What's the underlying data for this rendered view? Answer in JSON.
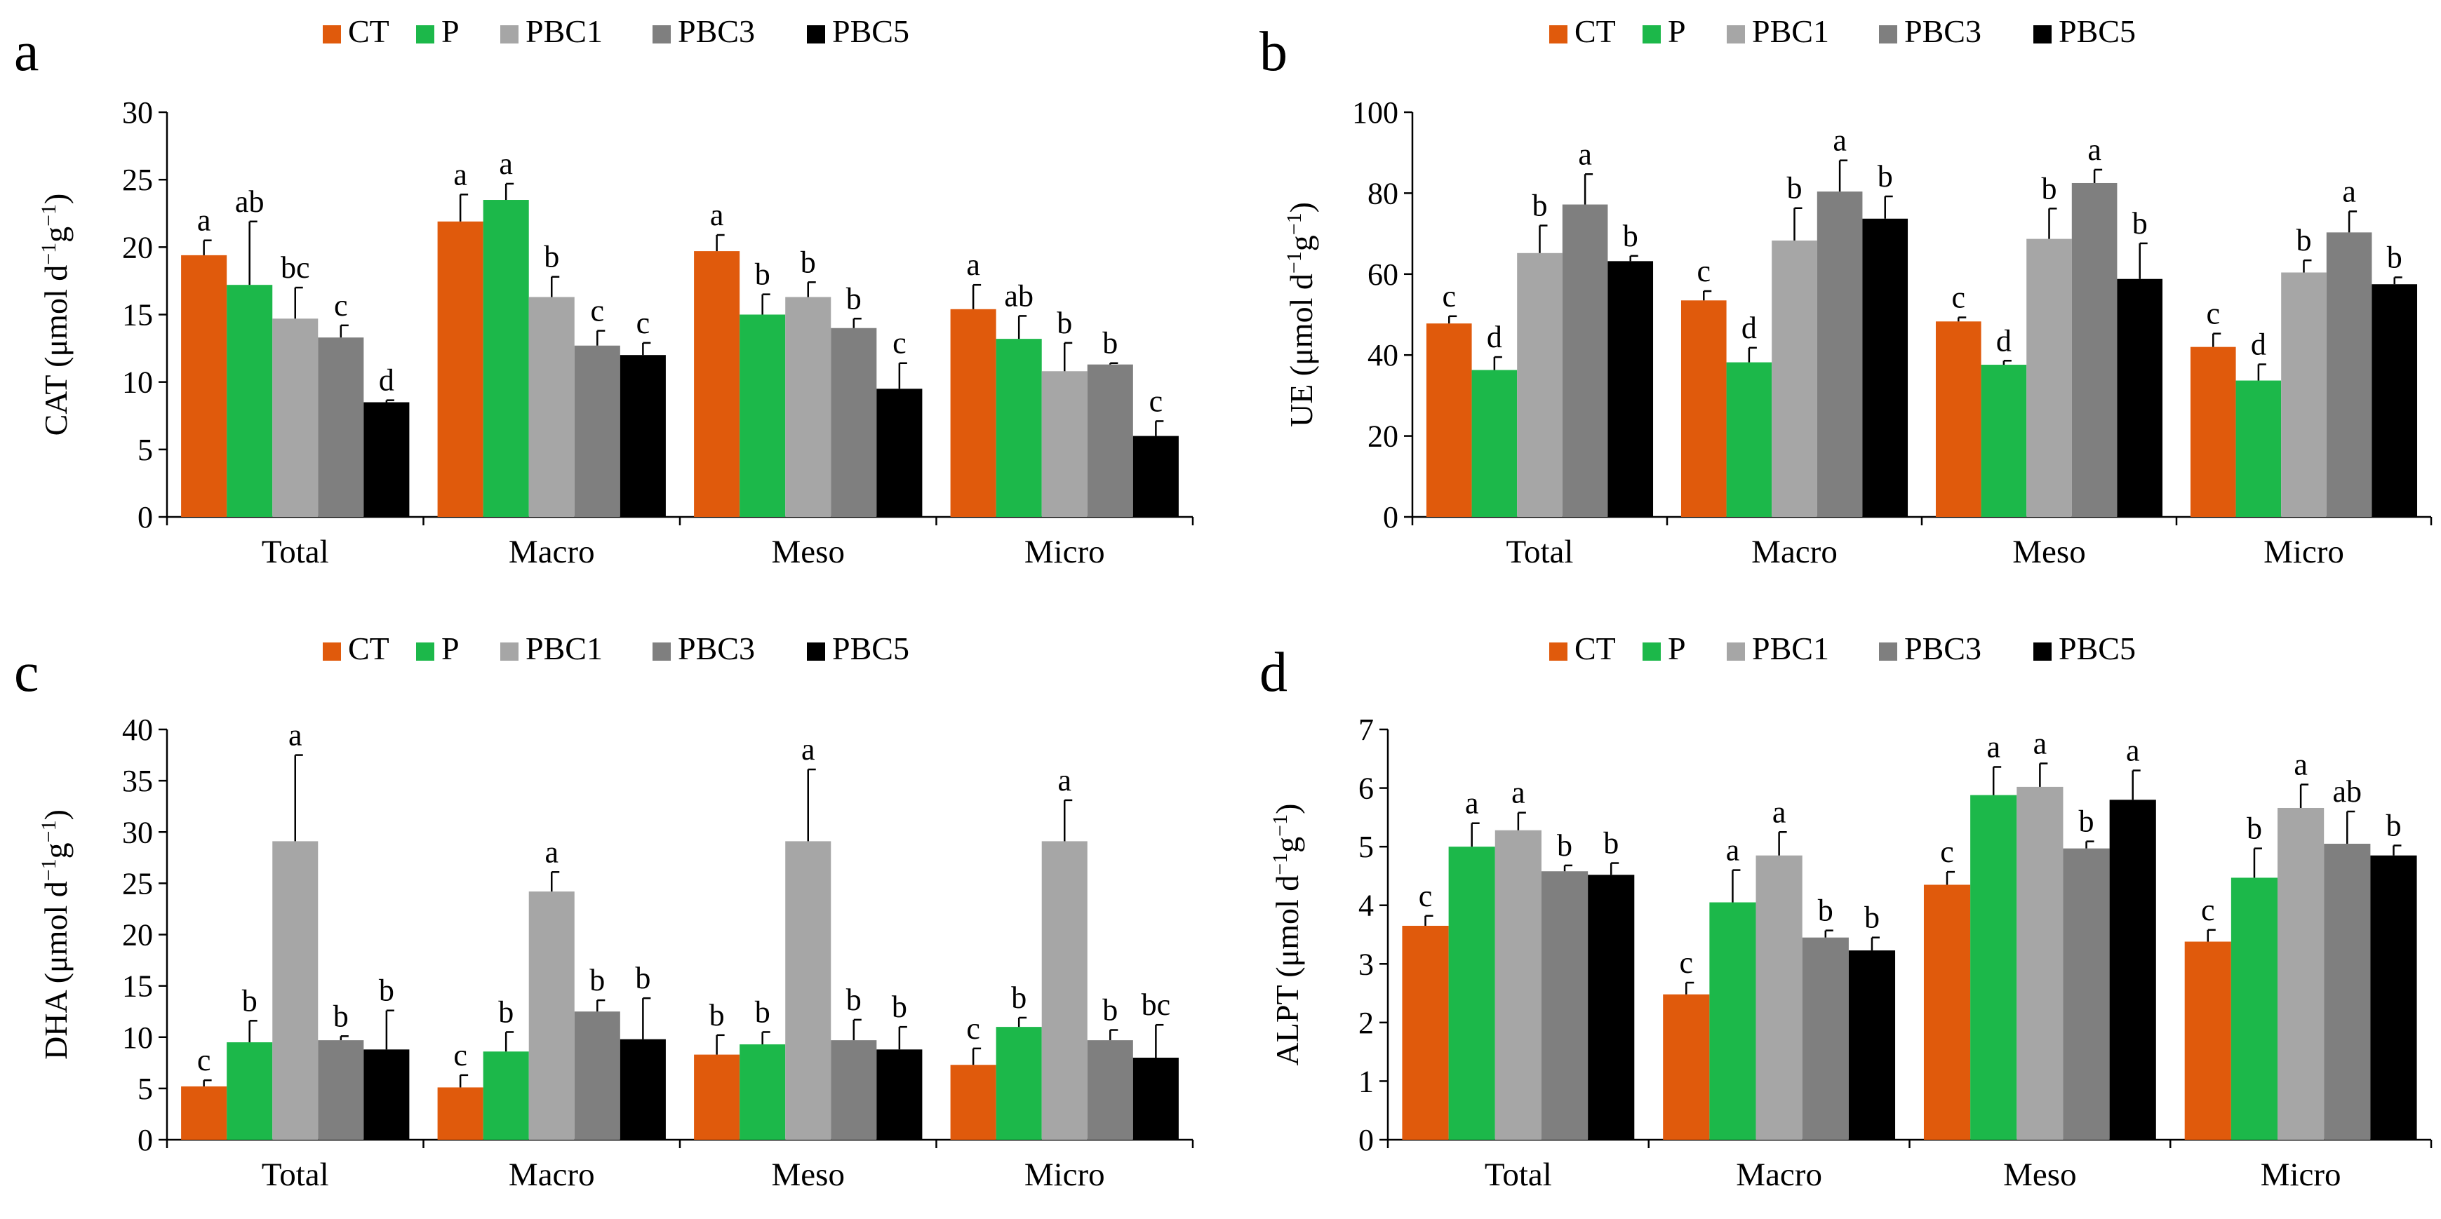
{
  "colors": {
    "CT": "#e05a0c",
    "P": "#1cb84a",
    "PBC1": "#a6a6a6",
    "PBC3": "#7f7f7f",
    "PBC5": "#000000"
  },
  "chart_data": [
    {
      "type": "bar",
      "panel": "a",
      "ylabel": "CAT (μmol d⁻¹g⁻¹)",
      "ylabel_parts": [
        "CAT (μmol d",
        "−1",
        "g",
        "−1",
        ")"
      ],
      "ylim": [
        0,
        30
      ],
      "yticks": [
        0,
        5,
        10,
        15,
        20,
        25,
        30
      ],
      "categories": [
        "Total",
        "Macro",
        "Meso",
        "Micro"
      ],
      "series": [
        {
          "name": "CT",
          "values": [
            19.4,
            21.9,
            19.7,
            15.4
          ],
          "errors": [
            1.1,
            2.0,
            1.2,
            1.8
          ],
          "labels": [
            "a",
            "a",
            "a",
            "a"
          ]
        },
        {
          "name": "P",
          "values": [
            17.2,
            23.5,
            15.0,
            13.2
          ],
          "errors": [
            4.7,
            1.2,
            1.5,
            1.7
          ],
          "labels": [
            "ab",
            "a",
            "b",
            "ab"
          ]
        },
        {
          "name": "PBC1",
          "values": [
            14.7,
            16.3,
            16.3,
            10.8
          ],
          "errors": [
            2.3,
            1.5,
            1.1,
            2.1
          ],
          "labels": [
            "bc",
            "b",
            "b",
            "b"
          ]
        },
        {
          "name": "PBC3",
          "values": [
            13.3,
            12.7,
            14.0,
            11.3
          ],
          "errors": [
            0.9,
            1.1,
            0.7,
            0.1
          ],
          "labels": [
            "c",
            "c",
            "b",
            "b"
          ]
        },
        {
          "name": "PBC5",
          "values": [
            8.5,
            12.0,
            9.5,
            6.0
          ],
          "errors": [
            0.15,
            0.9,
            1.9,
            1.1
          ],
          "labels": [
            "d",
            "c",
            "c",
            "c"
          ]
        }
      ]
    },
    {
      "type": "bar",
      "panel": "b",
      "ylabel": "UE (μmol d⁻¹g⁻¹)",
      "ylabel_parts": [
        "UE (μmol d",
        "−1",
        "g",
        "−1",
        ")"
      ],
      "ylim": [
        0,
        100
      ],
      "yticks": [
        0,
        20,
        40,
        60,
        80,
        100
      ],
      "categories": [
        "Total",
        "Macro",
        "Meso",
        "Micro"
      ],
      "series": [
        {
          "name": "CT",
          "values": [
            47.8,
            53.5,
            48.3,
            42.0
          ],
          "errors": [
            1.8,
            2.3,
            1.0,
            3.3
          ],
          "labels": [
            "c",
            "c",
            "c",
            "c"
          ]
        },
        {
          "name": "P",
          "values": [
            36.3,
            38.2,
            37.6,
            33.7
          ],
          "errors": [
            3.2,
            3.6,
            1.0,
            4.0
          ],
          "labels": [
            "d",
            "d",
            "d",
            "d"
          ]
        },
        {
          "name": "PBC1",
          "values": [
            65.2,
            68.3,
            68.7,
            60.4
          ],
          "errors": [
            6.8,
            8.0,
            7.5,
            3.0
          ],
          "labels": [
            "b",
            "b",
            "b",
            "b"
          ]
        },
        {
          "name": "PBC3",
          "values": [
            77.2,
            80.4,
            82.5,
            70.3
          ],
          "errors": [
            7.5,
            7.7,
            3.3,
            5.2
          ],
          "labels": [
            "a",
            "a",
            "a",
            "a"
          ]
        },
        {
          "name": "PBC5",
          "values": [
            63.2,
            73.7,
            58.8,
            57.5
          ],
          "errors": [
            1.3,
            5.5,
            8.8,
            1.7
          ],
          "labels": [
            "b",
            "b",
            "b",
            "b"
          ]
        }
      ]
    },
    {
      "type": "bar",
      "panel": "c",
      "ylabel": "DHA (μmol d⁻¹g⁻¹)",
      "ylabel_parts": [
        "DHA (μmol d",
        "−1",
        "g",
        "−1",
        ")"
      ],
      "ylim": [
        0,
        40
      ],
      "yticks": [
        0,
        5,
        10,
        15,
        20,
        25,
        30,
        35,
        40
      ],
      "categories": [
        "Total",
        "Macro",
        "Meso",
        "Micro"
      ],
      "series": [
        {
          "name": "CT",
          "values": [
            5.2,
            5.1,
            8.3,
            7.3
          ],
          "errors": [
            0.6,
            1.2,
            1.9,
            1.6
          ],
          "labels": [
            "c",
            "c",
            "b",
            "c"
          ]
        },
        {
          "name": "P",
          "values": [
            9.5,
            8.6,
            9.3,
            11.0
          ],
          "errors": [
            2.1,
            1.9,
            1.2,
            0.9
          ],
          "labels": [
            "b",
            "b",
            "b",
            "b"
          ]
        },
        {
          "name": "PBC1",
          "values": [
            29.1,
            24.2,
            29.1,
            29.1
          ],
          "errors": [
            8.4,
            1.9,
            7.0,
            4.0
          ],
          "labels": [
            "a",
            "a",
            "a",
            "a"
          ]
        },
        {
          "name": "PBC3",
          "values": [
            9.7,
            12.5,
            9.7,
            9.7
          ],
          "errors": [
            0.4,
            1.1,
            2.0,
            1.0
          ],
          "labels": [
            "b",
            "b",
            "b",
            "b"
          ]
        },
        {
          "name": "PBC5",
          "values": [
            8.8,
            9.8,
            8.8,
            8.0
          ],
          "errors": [
            3.8,
            4.0,
            2.2,
            3.2
          ],
          "labels": [
            "b",
            "b",
            "b",
            "bc"
          ]
        }
      ]
    },
    {
      "type": "bar",
      "panel": "d",
      "ylabel": "ALPT (μmol d⁻¹g⁻¹)",
      "ylabel_parts": [
        "ALPT (μmol d",
        "−1",
        "g",
        "−1",
        ")"
      ],
      "ylim": [
        0,
        7
      ],
      "yticks": [
        0,
        1,
        2,
        3,
        4,
        5,
        6,
        7
      ],
      "categories": [
        "Total",
        "Macro",
        "Meso",
        "Micro"
      ],
      "series": [
        {
          "name": "CT",
          "values": [
            3.65,
            2.48,
            4.35,
            3.38
          ],
          "errors": [
            0.17,
            0.2,
            0.22,
            0.2
          ],
          "labels": [
            "c",
            "c",
            "c",
            "c"
          ]
        },
        {
          "name": "P",
          "values": [
            5.0,
            4.05,
            5.88,
            4.47
          ],
          "errors": [
            0.4,
            0.55,
            0.48,
            0.5
          ],
          "labels": [
            "a",
            "a",
            "a",
            "b"
          ]
        },
        {
          "name": "PBC1",
          "values": [
            5.28,
            4.85,
            6.02,
            5.66
          ],
          "errors": [
            0.3,
            0.4,
            0.4,
            0.4
          ],
          "labels": [
            "a",
            "a",
            "a",
            "a"
          ]
        },
        {
          "name": "PBC3",
          "values": [
            4.58,
            3.45,
            4.97,
            5.05
          ],
          "errors": [
            0.1,
            0.12,
            0.12,
            0.55
          ],
          "labels": [
            "b",
            "b",
            "b",
            "ab"
          ]
        },
        {
          "name": "PBC5",
          "values": [
            4.52,
            3.23,
            5.8,
            4.85
          ],
          "errors": [
            0.2,
            0.22,
            0.5,
            0.17
          ],
          "labels": [
            "b",
            "b",
            "a",
            "b"
          ]
        }
      ]
    }
  ]
}
